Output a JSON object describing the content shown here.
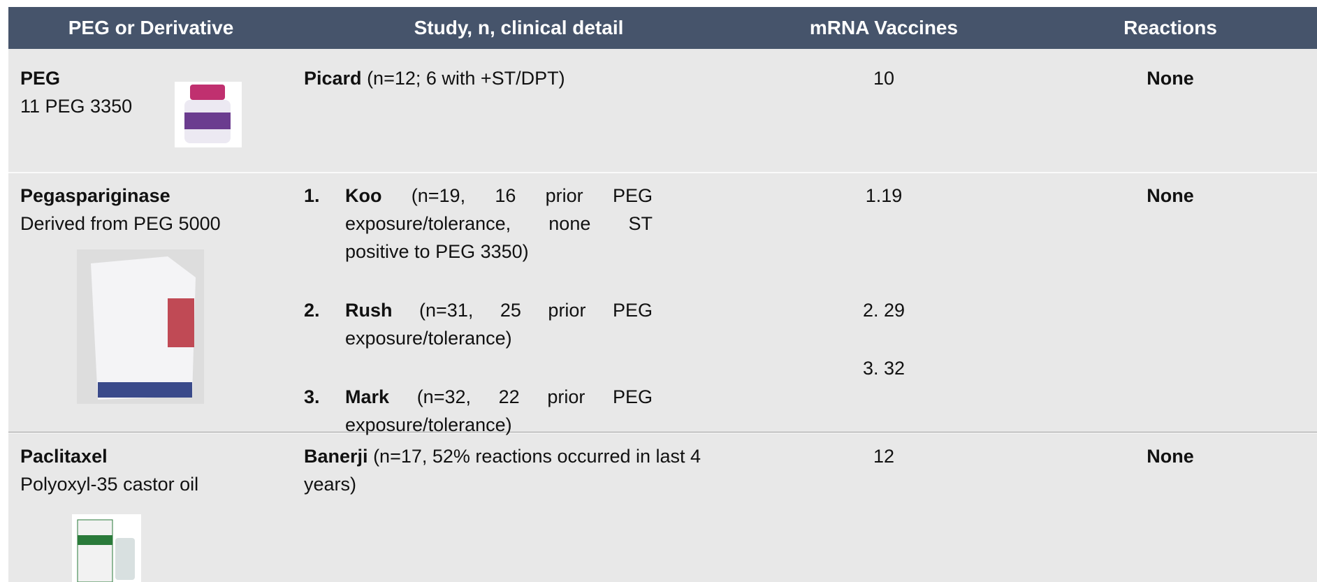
{
  "header": [
    "PEG or Derivative",
    "Study, n, clinical detail",
    "mRNA Vaccines",
    "Reactions"
  ],
  "rows": [
    {
      "name": "PEG",
      "detail": "11 PEG 3350",
      "studies": [
        {
          "author": "Picard",
          "text": "(n=12; 6 with +ST/DPT)"
        }
      ],
      "vaccines": [
        "10"
      ],
      "reactions": "None"
    },
    {
      "name": "Pegaspariginase",
      "detail": "Derived from PEG 5000",
      "studies": [
        {
          "number": "1.",
          "author": "Koo",
          "text": "(n=19, 16 prior PEG exposure/tolerance, none ST positive to PEG 3350)"
        },
        {
          "number": "2.",
          "author": "Rush",
          "text": "(n=31, 25 prior PEG exposure/tolerance)"
        },
        {
          "number": "3.",
          "author": "Mark",
          "text": "(n=32, 22 prior PEG exposure/tolerance)"
        }
      ],
      "vaccines": [
        "1.19",
        "2. 29",
        "3. 32"
      ],
      "reactions": "None"
    },
    {
      "name": "Paclitaxel",
      "detail": "Polyoxyl-35 castor oil",
      "studies": [
        {
          "author": "Banerji",
          "text": "(n=17, 52% reactions occurred in last 4 years)"
        }
      ],
      "vaccines": [
        "12"
      ],
      "reactions": "None"
    }
  ]
}
